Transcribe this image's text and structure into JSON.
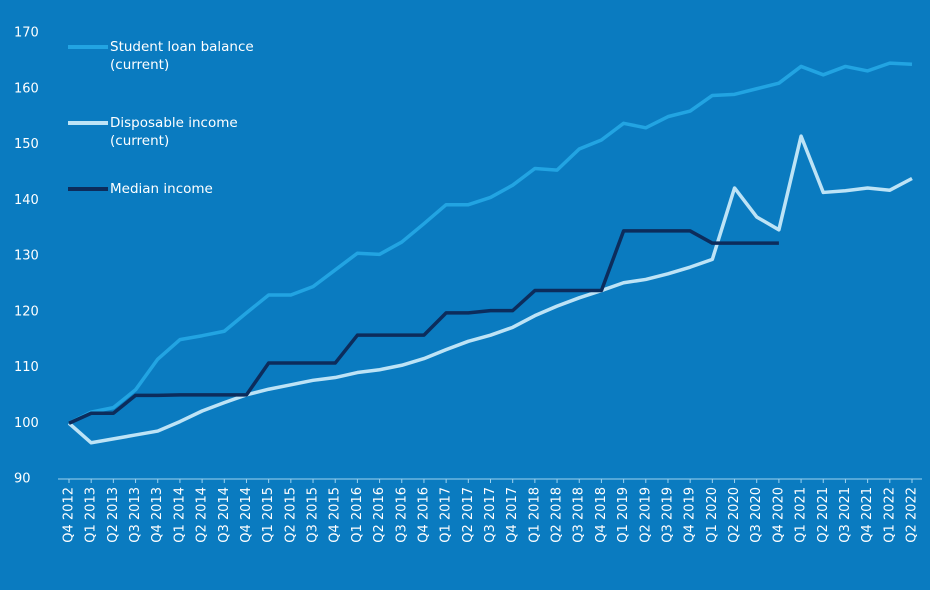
{
  "chart_data": {
    "type": "line",
    "categories": [
      "Q4 2012",
      "Q1 2013",
      "Q2 2013",
      "Q3 2013",
      "Q4 2013",
      "Q1 2014",
      "Q2 2014",
      "Q3 2014",
      "Q4 2014",
      "Q1 2015",
      "Q2 2015",
      "Q3 2015",
      "Q4 2015",
      "Q1 2016",
      "Q2 2016",
      "Q3 2016",
      "Q4 2016",
      "Q1 2017",
      "Q2 2017",
      "Q3 2017",
      "Q4 2017",
      "Q1 2018",
      "Q2 2018",
      "Q3 2018",
      "Q4 2018",
      "Q1 2019",
      "Q2 2019",
      "Q3 2019",
      "Q4 2019",
      "Q1 2020",
      "Q2 2020",
      "Q3 2020",
      "Q4 2020",
      "Q1 2021",
      "Q2 2021",
      "Q3 2021",
      "Q4 2021",
      "Q1 2022",
      "Q2 2022"
    ],
    "series": [
      {
        "name": "Student loan balance (current)",
        "color": "#22a4e2",
        "values": [
          100,
          102,
          102.8,
          106,
          111.5,
          115,
          115.7,
          116.5,
          119.8,
          123,
          123,
          124.5,
          127.5,
          130.5,
          130.3,
          132.5,
          135.8,
          139.2,
          139.2,
          140.5,
          142.7,
          145.7,
          145.4,
          149.2,
          150.8,
          153.8,
          153,
          155,
          156,
          158.8,
          159,
          160,
          161,
          164,
          162.5,
          164,
          163.2,
          164.6,
          164.4
        ]
      },
      {
        "name": "Disposable income (current)",
        "color": "#bde3f6",
        "values": [
          100,
          96.5,
          97.2,
          97.9,
          98.6,
          100.3,
          102.2,
          103.7,
          105.1,
          106.1,
          106.9,
          107.7,
          108.2,
          109.1,
          109.6,
          110.4,
          111.6,
          113.2,
          114.7,
          115.8,
          117.2,
          119.3,
          121,
          122.5,
          123.8,
          125.2,
          125.8,
          126.8,
          128,
          129.4,
          142.2,
          137,
          134.7,
          151.5,
          141.4,
          141.7,
          142.2,
          141.8,
          143.9
        ]
      },
      {
        "name": "Median income",
        "color": "#0c2c5c",
        "values": [
          100,
          101.8,
          101.8,
          105,
          105,
          105.1,
          105.1,
          105.1,
          105.1,
          110.8,
          110.8,
          110.8,
          110.8,
          115.8,
          115.8,
          115.8,
          115.8,
          119.8,
          119.8,
          120.2,
          120.2,
          123.8,
          123.8,
          123.8,
          123.8,
          134.5,
          134.5,
          134.5,
          134.5,
          132.3,
          132.3,
          132.3,
          132.3,
          null,
          null,
          null,
          null,
          null,
          null
        ]
      }
    ],
    "ylim": [
      90,
      170
    ],
    "yticks": [
      90,
      100,
      110,
      120,
      130,
      140,
      150,
      160,
      170
    ],
    "grid": false
  }
}
